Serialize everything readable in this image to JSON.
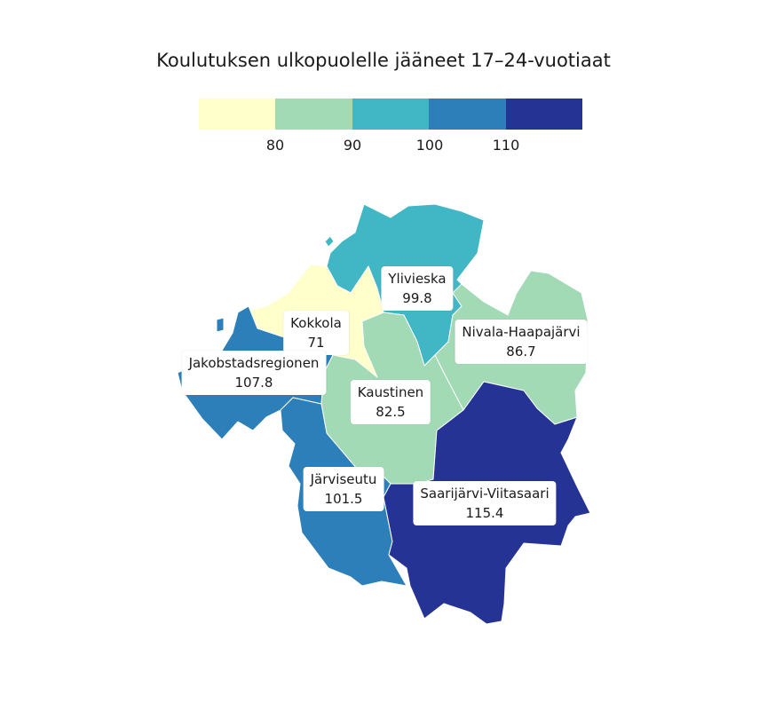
{
  "title": "Koulutuksen ulkopuolelle jääneet 17–24-vuotiaat",
  "legend": {
    "colors": [
      "#ffffcc",
      "#a1dab4",
      "#41b6c4",
      "#2c7fb8",
      "#253494"
    ],
    "ticks": [
      "80",
      "90",
      "100",
      "110"
    ]
  },
  "regions": [
    {
      "name": "Ylivieska",
      "value": "99.8",
      "color": "#41b6c4"
    },
    {
      "name": "Kokkola",
      "value": "71",
      "color": "#ffffcc"
    },
    {
      "name": "Nivala-Haapajärvi",
      "value": "86.7",
      "color": "#a1dab4"
    },
    {
      "name": "Jakobstadsregionen",
      "value": "107.8",
      "color": "#2c7fb8"
    },
    {
      "name": "Kaustinen",
      "value": "82.5",
      "color": "#a1dab4"
    },
    {
      "name": "Järviseutu",
      "value": "101.5",
      "color": "#2c7fb8"
    },
    {
      "name": "Saarijärvi-Viitasaari",
      "value": "115.4",
      "color": "#253494"
    }
  ]
}
